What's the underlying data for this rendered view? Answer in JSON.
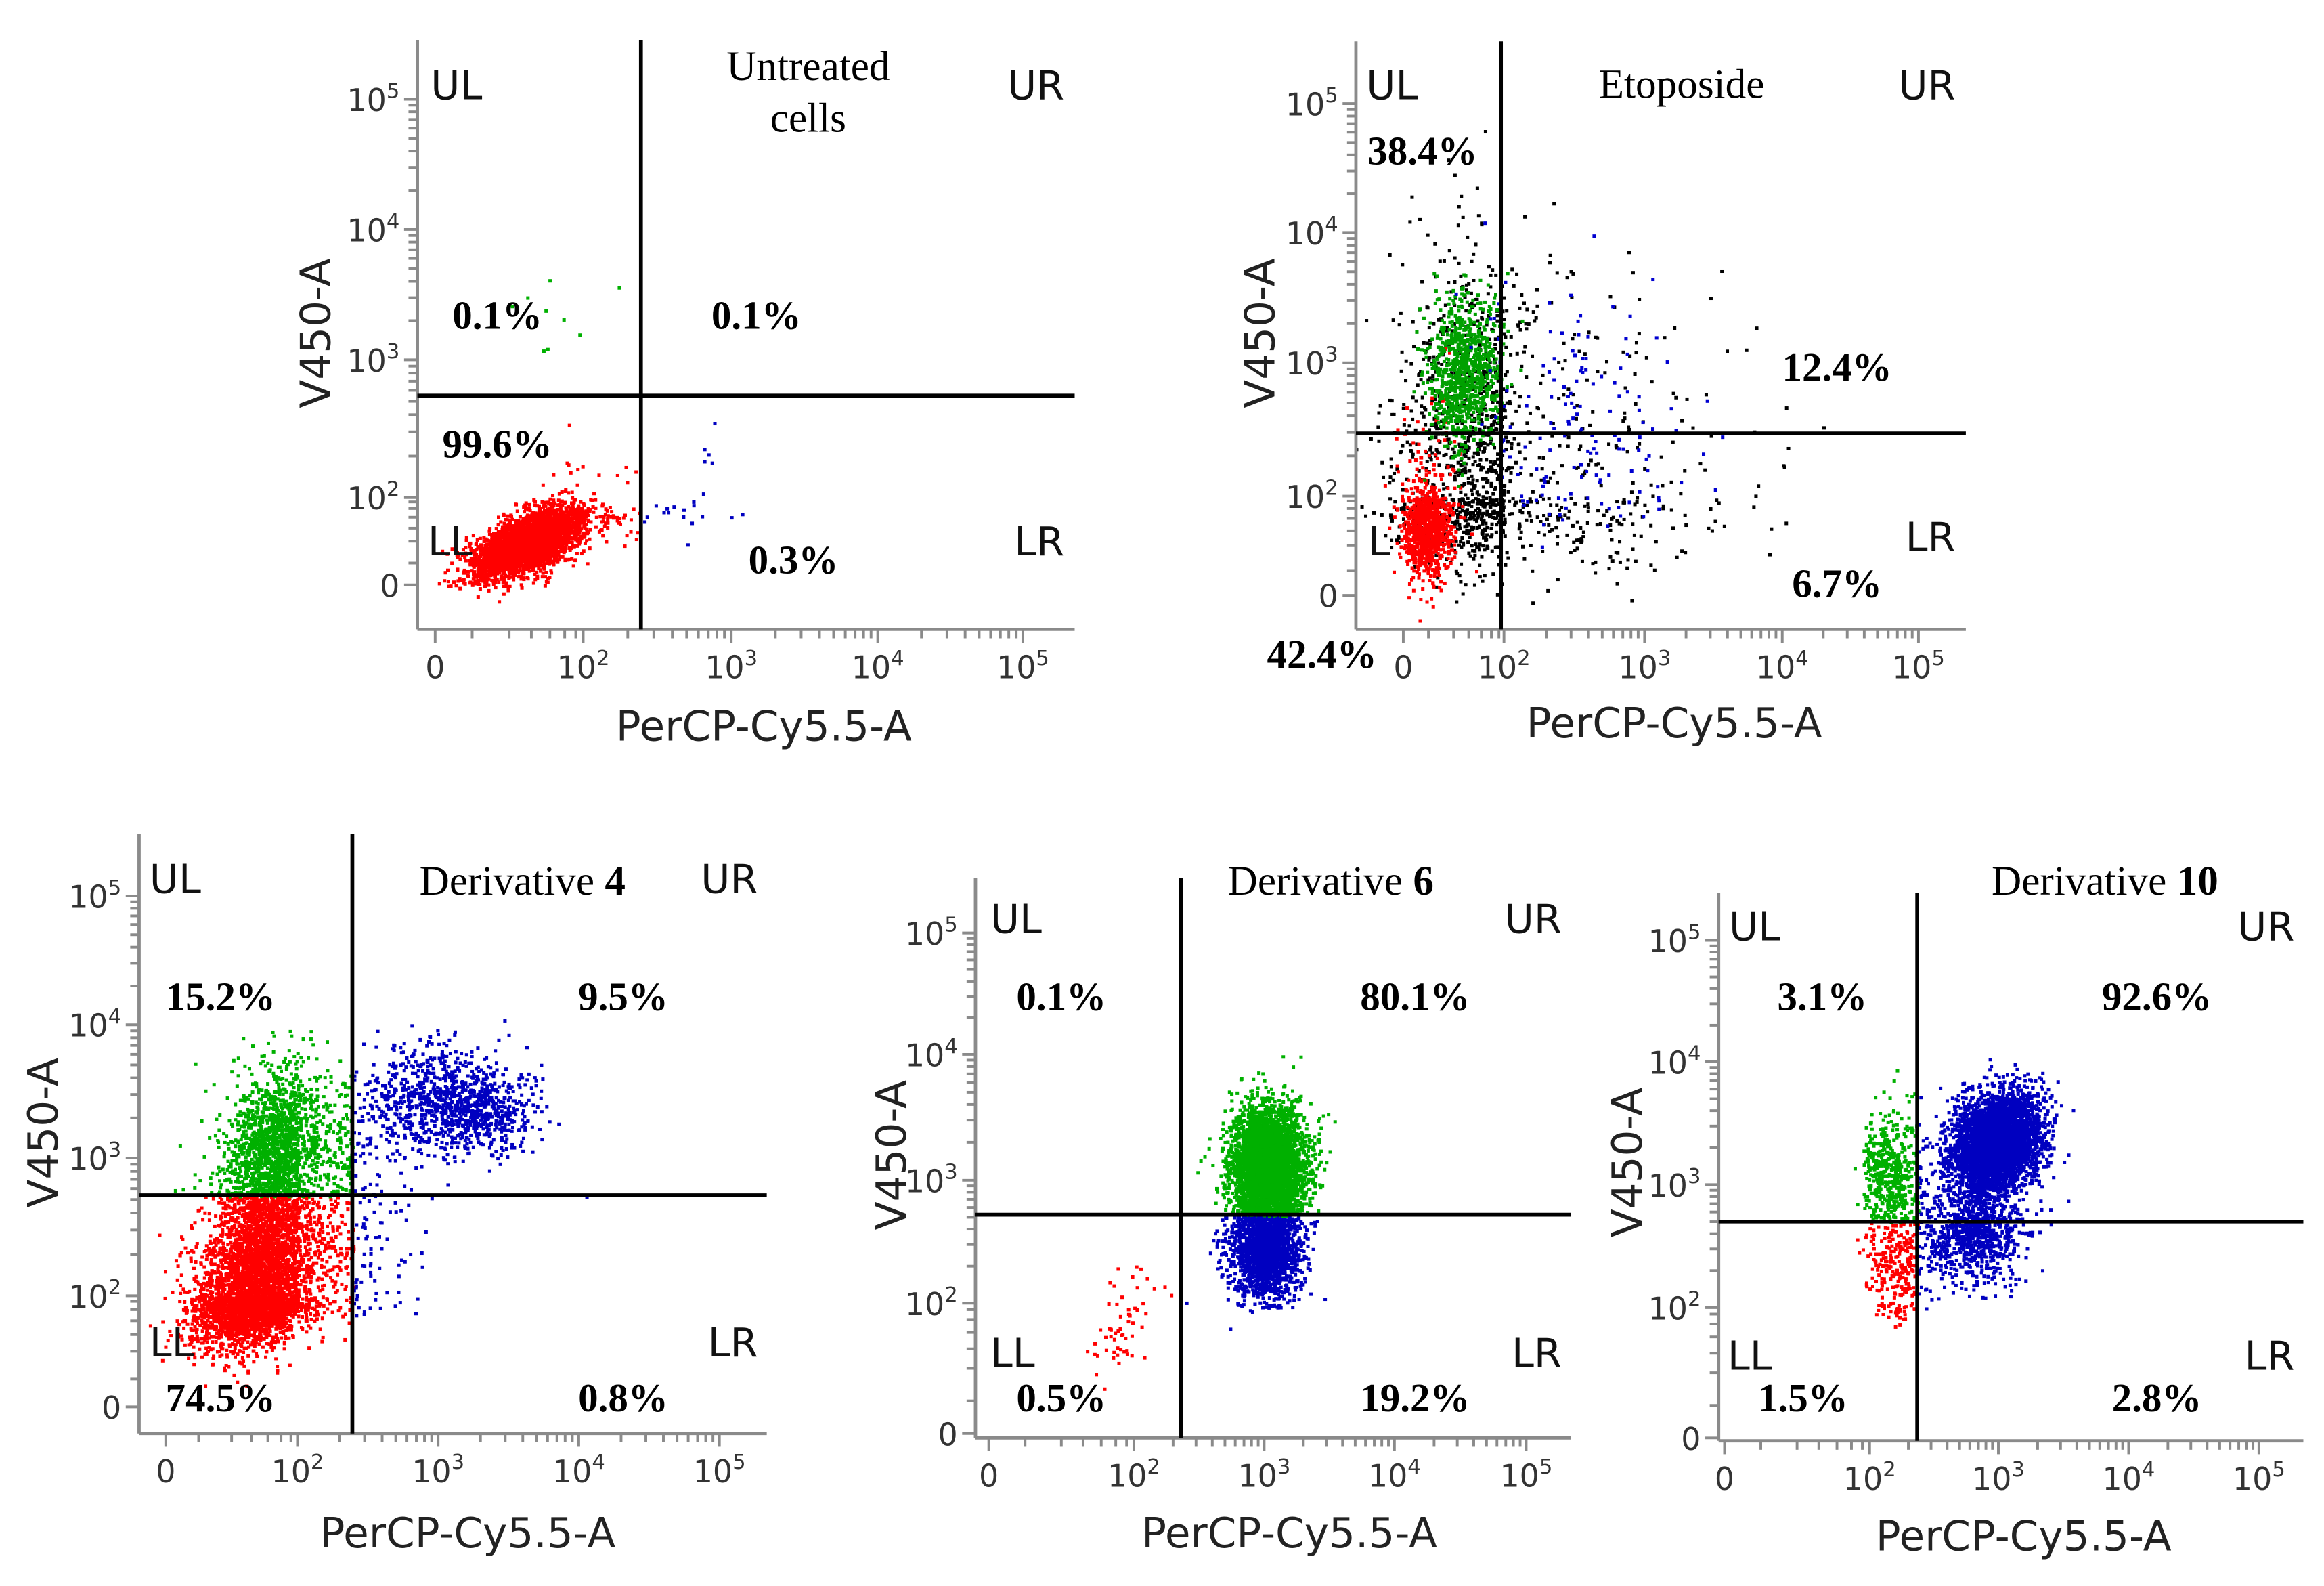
{
  "chart_data": [
    {
      "type": "scatter",
      "title_lines": [
        "Untreated",
        "cells"
      ],
      "title_number": "",
      "xlabel": "PerCP-Cy5.5-A",
      "ylabel": "V450-A",
      "scale": "biexponential (0, 10^2 ... 10^5)",
      "xticks": [
        "0",
        "10^2",
        "10^3",
        "10^4",
        "10^5"
      ],
      "yticks": [
        "0",
        "10^2",
        "10^3",
        "10^4",
        "10^5"
      ],
      "quadrant_labels": {
        "UL": "UL",
        "UR": "UR",
        "LL": "LL",
        "LR": "LR"
      },
      "percentages": {
        "UL": "0.1%",
        "UR": "0.1%",
        "LL": "99.6%",
        "LR": "0.3%"
      },
      "gate_axis_units": {
        "x": 2.39,
        "y": 2.74
      },
      "quadrant_colors": {
        "UL": "#00b000",
        "UR": "#00b000",
        "LL": "#ff0000",
        "LR": "#0000c0"
      },
      "clusters": [
        {
          "gated": true,
          "n": 3500,
          "x": 1.25,
          "y": 1.0,
          "sx": 0.38,
          "sy": 0.4,
          "rho": 0.6
        },
        {
          "gated": true,
          "n": 10,
          "x": 1.6,
          "y": 3.2,
          "sx": 0.5,
          "sy": 0.35,
          "rho": 0
        },
        {
          "gated": true,
          "n": 20,
          "x": 2.7,
          "y": 1.9,
          "sx": 0.18,
          "sy": 0.35,
          "rho": 0
        }
      ]
    },
    {
      "type": "scatter",
      "title_lines": [
        "Etoposide"
      ],
      "title_number": "",
      "xlabel": "PerCP-Cy5.5-A",
      "ylabel": "V450-A",
      "scale": "biexponential (0, 10^2 ... 10^5)",
      "xticks": [
        "0",
        "10^2",
        "10^3",
        "10^4",
        "10^5"
      ],
      "yticks": [
        "0",
        "10^2",
        "10^3",
        "10^4",
        "10^5"
      ],
      "quadrant_labels": {
        "UL": "UL",
        "UR": "UR",
        "LL": "L",
        "LR": "LR"
      },
      "percentages": {
        "UL": "38.4%",
        "UR": "12.4%",
        "LL": "42.4%",
        "LR": "6.7%"
      },
      "gate_axis_units": {
        "x": 1.94,
        "y": 2.47
      },
      "quadrant_colors": {},
      "clusters": [
        {
          "color": "#000000",
          "n": 1300,
          "x": 1.5,
          "y": 2.2,
          "sx": 0.9,
          "sy": 0.8,
          "rho": 0
        },
        {
          "color": "#ff0000",
          "n": 900,
          "x": 0.45,
          "y": 1.4,
          "sx": 0.25,
          "sy": 0.5,
          "rho": 0
        },
        {
          "color": "#00a000",
          "n": 900,
          "x": 1.2,
          "y": 2.95,
          "sx": 0.35,
          "sy": 0.28,
          "rho": 0
        },
        {
          "color": "#0000d0",
          "n": 150,
          "x": 2.5,
          "y": 2.6,
          "sx": 0.4,
          "sy": 0.5,
          "rho": 0
        }
      ]
    },
    {
      "type": "scatter",
      "title_lines": [
        "Derivative"
      ],
      "title_number": "4",
      "xlabel": "PerCP-Cy5.5-A",
      "ylabel": "V450-A",
      "scale": "biexponential (0, 10^2 ... 10^5)",
      "xticks": [
        "0",
        "10^2",
        "10^3",
        "10^4",
        "10^5"
      ],
      "yticks": [
        "0",
        "10^2",
        "10^3",
        "10^4",
        "10^5"
      ],
      "quadrant_labels": {
        "UL": "UL",
        "UR": "UR",
        "LL": "LL",
        "LR": "LR"
      },
      "percentages": {
        "UL": "15.2%",
        "UR": "9.5%",
        "LL": "74.5%",
        "LR": "0.8%"
      },
      "gate_axis_units": {
        "x": 2.39,
        "y": 2.73
      },
      "quadrant_colors": {
        "UL": "#00b000",
        "UR": "#0000c0",
        "LL": "#ff0000",
        "LR": "#0000c0"
      },
      "clusters": [
        {
          "gated": true,
          "n": 4500,
          "x": 1.4,
          "y": 2.1,
          "sx": 0.48,
          "sy": 0.45,
          "rho": 0.3
        },
        {
          "gated": true,
          "n": 1500,
          "x": 1.7,
          "y": 3.1,
          "sx": 0.4,
          "sy": 0.3,
          "rho": 0.2
        },
        {
          "gated": true,
          "n": 700,
          "x": 3.0,
          "y": 3.45,
          "sx": 0.25,
          "sy": 0.2,
          "rho": 0
        },
        {
          "gated": true,
          "n": 300,
          "x": 3.35,
          "y": 3.35,
          "sx": 0.18,
          "sy": 0.15,
          "rho": 0
        }
      ]
    },
    {
      "type": "scatter",
      "title_lines": [
        "Derivative"
      ],
      "title_number": "6",
      "xlabel": "PerCP-Cy5.5-A",
      "ylabel": "V450-A",
      "scale": "biexponential (0, 10^2 ... 10^5)",
      "xticks": [
        "0",
        "10^2",
        "10^3",
        "10^4",
        "10^5"
      ],
      "yticks": [
        "0",
        "10^2",
        "10^3",
        "10^4",
        "10^5"
      ],
      "quadrant_labels": {
        "UL": "UL",
        "UR": "UR",
        "LL": "LL",
        "LR": "LR"
      },
      "percentages": {
        "UL": "0.1%",
        "UR": "80.1%",
        "LL": "0.5%",
        "LR": "19.2%"
      },
      "gate_axis_units": {
        "x": 2.36,
        "y": 2.72
      },
      "quadrant_colors": {
        "UL": "#ff0000",
        "UR": "#00b000",
        "LL": "#ff0000",
        "LR": "#0000c0"
      },
      "clusters": [
        {
          "gated": true,
          "n": 4000,
          "x": 3.02,
          "y": 3.1,
          "sx": 0.14,
          "sy": 0.25,
          "rho": 0
        },
        {
          "gated": true,
          "n": 1500,
          "x": 3.0,
          "y": 2.4,
          "sx": 0.13,
          "sy": 0.18,
          "rho": 0
        },
        {
          "gated": true,
          "n": 60,
          "x": 1.8,
          "y": 1.6,
          "sx": 0.25,
          "sy": 0.35,
          "rho": 0.6
        }
      ]
    },
    {
      "type": "scatter",
      "title_lines": [
        "Derivative"
      ],
      "title_number": "10",
      "xlabel": "PerCP-Cy5.5-A",
      "ylabel": "V450-A",
      "scale": "biexponential (0, 10^2 ... 10^5)",
      "xticks": [
        "0",
        "10^2",
        "10^3",
        "10^4",
        "10^5"
      ],
      "yticks": [
        "0",
        "10^2",
        "10^3",
        "10^4",
        "10^5"
      ],
      "quadrant_labels": {
        "UL": "UL",
        "UR": "UR",
        "LL": "LL",
        "LR": "LR"
      },
      "percentages": {
        "UL": "3.1%",
        "UR": "92.6%",
        "LL": "1.5%",
        "LR": "2.8%"
      },
      "gate_axis_units": {
        "x": 2.37,
        "y": 2.7
      },
      "quadrant_colors": {
        "UL": "#00b000",
        "UR": "#0000c0",
        "LL": "#ff0000",
        "LR": "#0000c0"
      },
      "clusters": [
        {
          "gated": true,
          "n": 4000,
          "x": 2.97,
          "y": 3.35,
          "sx": 0.17,
          "sy": 0.2,
          "rho": 0.2
        },
        {
          "gated": true,
          "n": 800,
          "x": 2.8,
          "y": 2.6,
          "sx": 0.2,
          "sy": 0.2,
          "rho": 0
        },
        {
          "gated": true,
          "n": 500,
          "x": 2.15,
          "y": 3.1,
          "sx": 0.12,
          "sy": 0.25,
          "rho": 0
        },
        {
          "gated": true,
          "n": 250,
          "x": 2.2,
          "y": 2.35,
          "sx": 0.12,
          "sy": 0.25,
          "rho": 0
        }
      ]
    }
  ]
}
